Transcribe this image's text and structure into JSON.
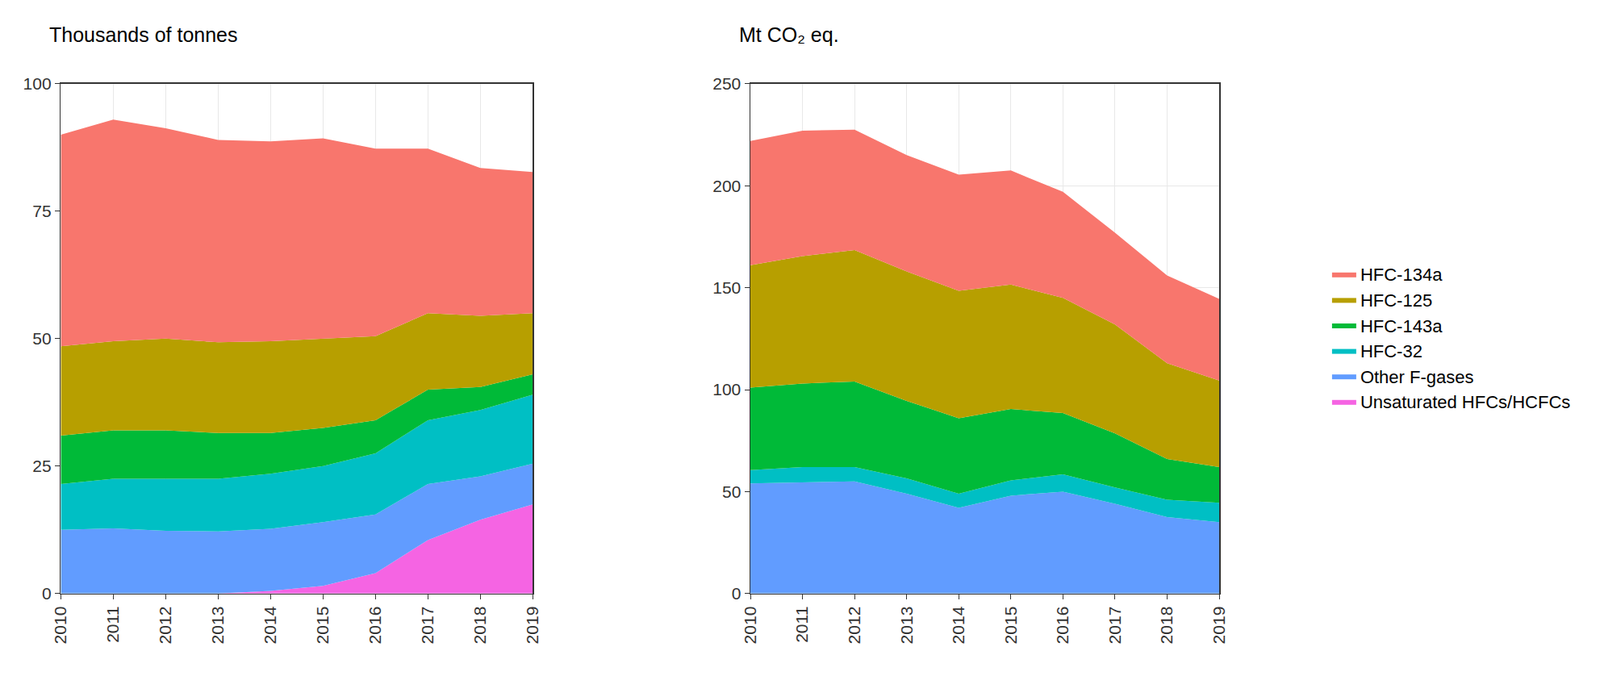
{
  "chart_data": [
    {
      "type": "area",
      "stacked": true,
      "grid": true,
      "y_label": "Thousands of tonnes",
      "x": [
        2010,
        2011,
        2012,
        2013,
        2014,
        2015,
        2016,
        2017,
        2018,
        2019
      ],
      "xlim": [
        2010,
        2019
      ],
      "xticks": [
        2010,
        2011,
        2012,
        2013,
        2014,
        2015,
        2016,
        2017,
        2018,
        2019
      ],
      "ylim": [
        0,
        100
      ],
      "yticks": [
        0,
        25,
        50,
        75,
        100
      ],
      "series": [
        {
          "name": "Unsaturated HFCs/HCFCs",
          "color": "#F564E3",
          "values": [
            0,
            0,
            0,
            0,
            0.5,
            1.5,
            4,
            10.5,
            14.5,
            17.5
          ]
        },
        {
          "name": "Other F-gases",
          "color": "#619CFF",
          "values": [
            12.5,
            12.8,
            12.3,
            12.2,
            12.2,
            12.5,
            11.5,
            11,
            8.5,
            8
          ]
        },
        {
          "name": "HFC-32",
          "color": "#00BFC4",
          "values": [
            9,
            9.7,
            10.2,
            10.3,
            10.8,
            11,
            12,
            12.5,
            13,
            13.5
          ]
        },
        {
          "name": "HFC-143a",
          "color": "#00BA38",
          "values": [
            9.5,
            9.5,
            9.5,
            9,
            8,
            7.5,
            6.5,
            6,
            4.5,
            4
          ]
        },
        {
          "name": "HFC-125",
          "color": "#B79F00",
          "values": [
            17.5,
            17.5,
            18,
            17.8,
            18,
            17.5,
            16.5,
            15,
            14,
            12
          ]
        },
        {
          "name": "HFC-134a",
          "color": "#F8766D",
          "values": [
            41.5,
            43.5,
            41.3,
            39.7,
            39.2,
            39.3,
            36.8,
            32.3,
            29,
            27.7
          ]
        }
      ]
    },
    {
      "type": "area",
      "stacked": true,
      "grid": true,
      "legend": "right",
      "y_label": "Mt CO₂ eq.",
      "x": [
        2010,
        2011,
        2012,
        2013,
        2014,
        2015,
        2016,
        2017,
        2018,
        2019
      ],
      "xlim": [
        2010,
        2019
      ],
      "xticks": [
        2010,
        2011,
        2012,
        2013,
        2014,
        2015,
        2016,
        2017,
        2018,
        2019
      ],
      "ylim": [
        0,
        250
      ],
      "yticks": [
        0,
        50,
        100,
        150,
        200,
        250
      ],
      "series": [
        {
          "name": "Unsaturated HFCs/HCFCs",
          "color": "#F564E3",
          "values": [
            0,
            0,
            0,
            0,
            0,
            0,
            0,
            0,
            0,
            0
          ]
        },
        {
          "name": "Other F-gases",
          "color": "#619CFF",
          "values": [
            54,
            54.5,
            55,
            49,
            42,
            48,
            50,
            44,
            37.5,
            35
          ]
        },
        {
          "name": "HFC-32",
          "color": "#00BFC4",
          "values": [
            6.5,
            7.5,
            7,
            7.5,
            7,
            7.5,
            8.5,
            8,
            8.5,
            9.5
          ]
        },
        {
          "name": "HFC-143a",
          "color": "#00BA38",
          "values": [
            40.5,
            41,
            42,
            38,
            37,
            35,
            30,
            26.5,
            20,
            17.5
          ]
        },
        {
          "name": "HFC-125",
          "color": "#B79F00",
          "values": [
            60,
            62.5,
            64.5,
            63.5,
            62.5,
            61,
            56.5,
            53.5,
            47,
            42.5
          ]
        },
        {
          "name": "HFC-134a",
          "color": "#F8766D",
          "values": [
            61,
            61.5,
            59,
            57,
            57,
            56,
            52,
            45,
            43,
            40
          ]
        }
      ]
    }
  ]
}
